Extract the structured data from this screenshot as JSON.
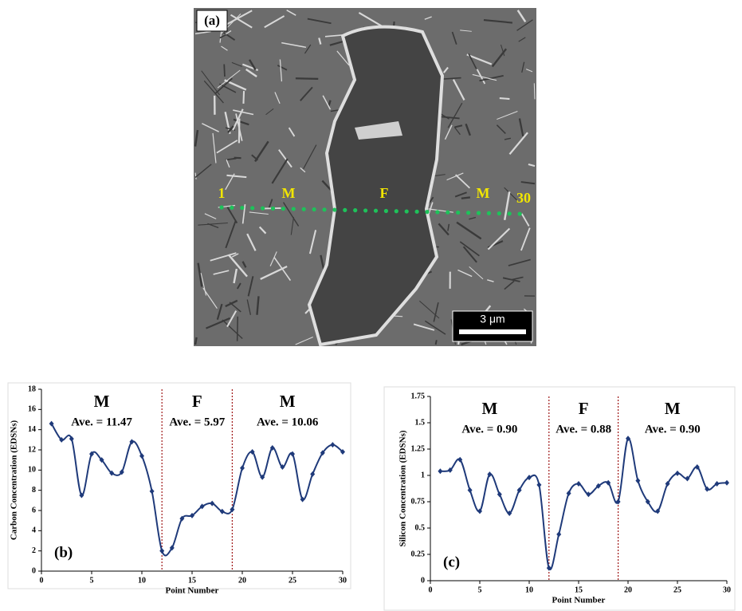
{
  "micrograph": {
    "panel_label": "(a)",
    "start_label": "1",
    "end_label": "30",
    "phase_labels": [
      "M",
      "F",
      "M"
    ],
    "scale_bar": "3 μm"
  },
  "chart_data": [
    {
      "type": "line",
      "y_label": "Carbon Concentration (EDSNs)",
      "x_label": "Point Number",
      "panel_label": "(b)",
      "color": "#1f3a7a",
      "x": [
        1,
        2,
        3,
        4,
        5,
        6,
        7,
        8,
        9,
        10,
        11,
        12,
        13,
        14,
        15,
        16,
        17,
        18,
        19,
        20,
        21,
        22,
        23,
        24,
        25,
        26,
        27,
        28,
        29,
        30
      ],
      "values": [
        14.6,
        13.0,
        13.1,
        7.5,
        11.6,
        11.0,
        9.7,
        9.8,
        12.8,
        11.4,
        7.9,
        2.0,
        2.3,
        5.2,
        5.5,
        6.4,
        6.7,
        5.9,
        6.1,
        10.2,
        11.8,
        9.3,
        12.2,
        10.3,
        11.6,
        7.1,
        9.6,
        11.7,
        12.5,
        11.8
      ],
      "xlim": [
        0,
        30
      ],
      "xticks": [
        0,
        5,
        10,
        15,
        20,
        25,
        30
      ],
      "ylim": [
        0,
        18
      ],
      "yticks": [
        0,
        2,
        4,
        6,
        8,
        10,
        12,
        14,
        16,
        18
      ],
      "boundaries": [
        12,
        19
      ],
      "regions": [
        {
          "label": "M",
          "average": "Ave. = 11.47"
        },
        {
          "label": "F",
          "average": "Ave. = 5.97"
        },
        {
          "label": "M",
          "average": "Ave. = 10.06"
        }
      ]
    },
    {
      "type": "line",
      "y_label": "Silicon Concentration (EDSNs)",
      "x_label": "Point Number",
      "panel_label": "(c)",
      "color": "#1f3a7a",
      "x": [
        1,
        2,
        3,
        4,
        5,
        6,
        7,
        8,
        9,
        10,
        11,
        12,
        13,
        14,
        15,
        16,
        17,
        18,
        19,
        20,
        21,
        22,
        23,
        24,
        25,
        26,
        27,
        28,
        29,
        30
      ],
      "values": [
        1.04,
        1.05,
        1.15,
        0.86,
        0.66,
        1.01,
        0.82,
        0.64,
        0.86,
        0.98,
        0.91,
        0.12,
        0.44,
        0.83,
        0.92,
        0.82,
        0.9,
        0.93,
        0.75,
        1.35,
        0.95,
        0.75,
        0.66,
        0.92,
        1.02,
        0.97,
        1.08,
        0.87,
        0.92,
        0.93
      ],
      "xlim": [
        0,
        30
      ],
      "xticks": [
        0,
        5,
        10,
        15,
        20,
        25,
        30
      ],
      "ylim": [
        0,
        1.75
      ],
      "yticks": [
        0,
        0.25,
        0.5,
        0.75,
        1,
        1.25,
        1.5,
        1.75
      ],
      "boundaries": [
        12,
        19
      ],
      "regions": [
        {
          "label": "M",
          "average": "Ave. = 0.90"
        },
        {
          "label": "F",
          "average": "Ave. = 0.88"
        },
        {
          "label": "M",
          "average": "Ave. = 0.90"
        }
      ]
    }
  ]
}
